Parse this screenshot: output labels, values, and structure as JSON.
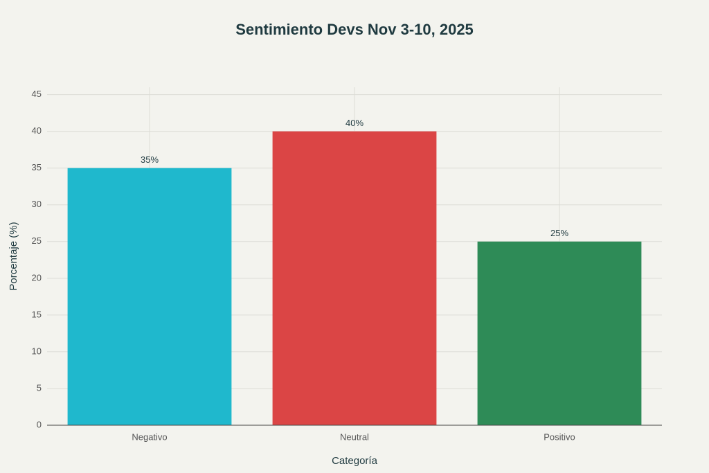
{
  "chart_data": {
    "type": "bar",
    "title": "Sentimiento Devs Nov 3-10, 2025",
    "x_label": "Categoría",
    "y_label": "Porcentaje (%)",
    "categories": [
      "Negativo",
      "Neutral",
      "Positivo"
    ],
    "values": [
      35,
      40,
      25
    ],
    "value_labels": [
      "35%",
      "40%",
      "25%"
    ],
    "colors": [
      "#1FB8CD",
      "#DB4545",
      "#2E8B57"
    ],
    "ylim": [
      0,
      46
    ],
    "yticks": [
      0,
      5,
      10,
      15,
      20,
      25,
      30,
      35,
      40,
      45
    ],
    "grid": true
  }
}
